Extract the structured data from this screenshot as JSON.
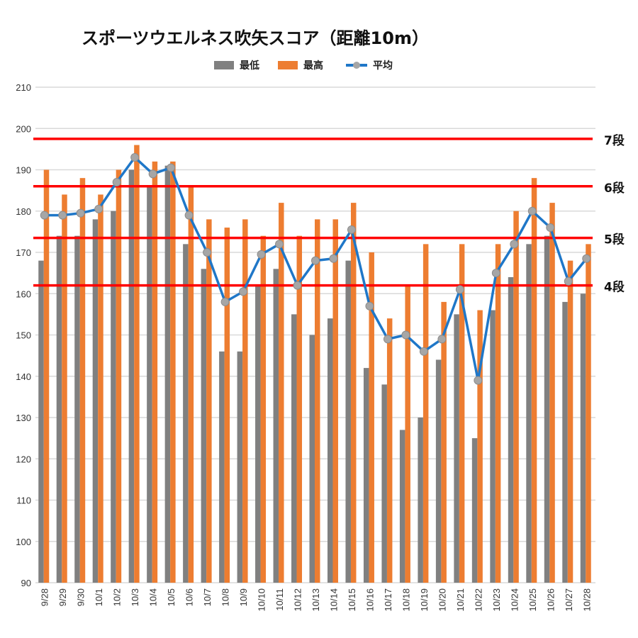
{
  "chart_data": {
    "type": "bar",
    "title": "スポーツウエルネス吹矢スコア（距離10m）",
    "categories": [
      "9/28",
      "9/29",
      "9/30",
      "10/1",
      "10/2",
      "10/3",
      "10/4",
      "10/5",
      "10/6",
      "10/7",
      "10/8",
      "10/9",
      "10/10",
      "10/11",
      "10/12",
      "10/13",
      "10/14",
      "10/15",
      "10/16",
      "10/17",
      "10/18",
      "10/19",
      "10/20",
      "10/21",
      "10/22",
      "10/23",
      "10/24",
      "10/25",
      "10/26",
      "10/27",
      "10/28"
    ],
    "series": [
      {
        "name": "最低",
        "type": "bar",
        "color": "#808080",
        "values": [
          168,
          174,
          174,
          178,
          180,
          190,
          186,
          191,
          172,
          166,
          146,
          146,
          162,
          166,
          155,
          150,
          154,
          168,
          142,
          138,
          127,
          130,
          144,
          155,
          125,
          156,
          164,
          172,
          174,
          158,
          160
        ]
      },
      {
        "name": "最高",
        "type": "bar",
        "color": "#ED7D31",
        "values": [
          190,
          184,
          188,
          184,
          190,
          196,
          192,
          192,
          186,
          178,
          176,
          178,
          174,
          182,
          174,
          178,
          178,
          182,
          170,
          154,
          162,
          172,
          158,
          172,
          156,
          172,
          180,
          188,
          182,
          168,
          172
        ]
      },
      {
        "name": "平均",
        "type": "line",
        "color": "#1F77C8",
        "marker_color": "#A6A6A6",
        "values": [
          179,
          179,
          179.5,
          180.5,
          187,
          193,
          189,
          190.5,
          179,
          170,
          158,
          160.5,
          169.5,
          172,
          162,
          168,
          168.5,
          175.5,
          157,
          149,
          150,
          146,
          149,
          161,
          139,
          165,
          172,
          180,
          176,
          163,
          168.5
        ]
      }
    ],
    "ylim": [
      90,
      210
    ],
    "yticks": [
      90,
      100,
      110,
      120,
      130,
      140,
      150,
      160,
      170,
      180,
      190,
      200,
      210
    ],
    "grid": true,
    "legend_position": "top",
    "reference_lines": [
      {
        "value": 197.5,
        "label": "7段",
        "color": "#FF0000"
      },
      {
        "value": 186,
        "label": "6段",
        "color": "#FF0000"
      },
      {
        "value": 173.5,
        "label": "5段",
        "color": "#FF0000"
      },
      {
        "value": 162,
        "label": "4段",
        "color": "#FF0000"
      }
    ]
  }
}
